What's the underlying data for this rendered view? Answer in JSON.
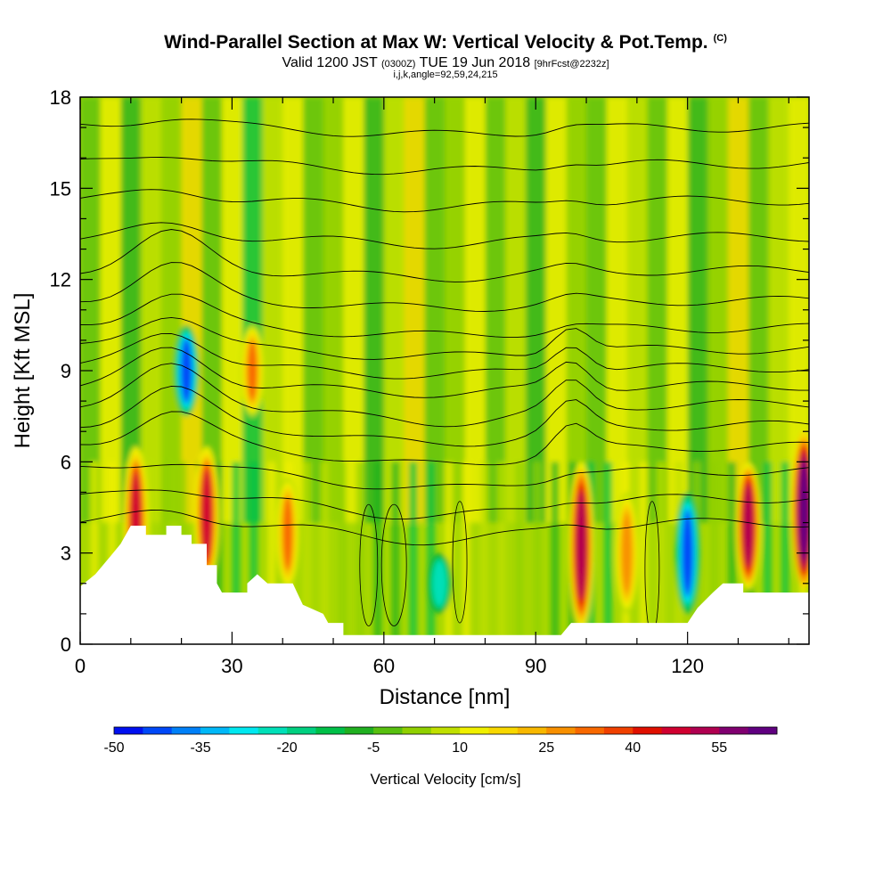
{
  "title": "Wind-Parallel Section at Max W: Vertical Velocity & Pot.Temp.",
  "copyright_mark": "(C)",
  "subtitle_valid": "Valid 1200 JST",
  "subtitle_utc": "(0300Z)",
  "subtitle_date": "TUE 19 Jun 2018",
  "subtitle_fcst": "[9hrFcst@2232z]",
  "subtitle_params": "i,j,k,angle=92,59,24,215",
  "chart_data": {
    "type": "heatmap",
    "xlabel": "Distance [nm]",
    "ylabel": "Height [Kft MSL]",
    "xlim": [
      0,
      144
    ],
    "ylim": [
      0,
      18
    ],
    "xticks": [
      0,
      30,
      60,
      90,
      120
    ],
    "yticks": [
      0,
      3,
      6,
      9,
      12,
      15,
      18
    ],
    "colorbar": {
      "title": "Vertical Velocity [cm/s]",
      "min": -50,
      "max": 65,
      "step": 5,
      "tick_values": [
        -50,
        -35,
        -20,
        -5,
        10,
        25,
        40,
        55
      ],
      "colors": [
        "#0010f0",
        "#0048f8",
        "#0080f8",
        "#00b8f8",
        "#00e8f0",
        "#00e0b8",
        "#00d080",
        "#00c048",
        "#20b020",
        "#58c010",
        "#90d000",
        "#c0e000",
        "#f0f000",
        "#f8d800",
        "#f8b800",
        "#f89000",
        "#f86800",
        "#f04000",
        "#e01000",
        "#d00030",
        "#b00050",
        "#800070",
        "#600080"
      ]
    },
    "features": {
      "terrain_profile_kft": [
        [
          0,
          1.9
        ],
        [
          3,
          2.3
        ],
        [
          6,
          2.9
        ],
        [
          8,
          3.3
        ],
        [
          9,
          3.6
        ],
        [
          10,
          3.9
        ],
        [
          13,
          3.9
        ],
        [
          13,
          3.6
        ],
        [
          17,
          3.6
        ],
        [
          17,
          3.9
        ],
        [
          20,
          3.9
        ],
        [
          20,
          3.6
        ],
        [
          22,
          3.6
        ],
        [
          22,
          3.3
        ],
        [
          25,
          3.3
        ],
        [
          25,
          2.6
        ],
        [
          27,
          2.6
        ],
        [
          27,
          2.0
        ],
        [
          28,
          1.7
        ],
        [
          33,
          1.7
        ],
        [
          33,
          2.0
        ],
        [
          35,
          2.3
        ],
        [
          37,
          2.0
        ],
        [
          42,
          2.0
        ],
        [
          44,
          1.3
        ],
        [
          48,
          1.0
        ],
        [
          49,
          0.7
        ],
        [
          52,
          0.7
        ],
        [
          52,
          0.3
        ],
        [
          58,
          0.3
        ],
        [
          63,
          0.3
        ],
        [
          95,
          0.3
        ],
        [
          97,
          0.7
        ],
        [
          120,
          0.7
        ],
        [
          122,
          1.2
        ],
        [
          125,
          1.7
        ],
        [
          127,
          2.0
        ],
        [
          131,
          2.0
        ],
        [
          131,
          1.7
        ],
        [
          144,
          1.7
        ]
      ],
      "updraft_cores": [
        {
          "x": 11,
          "zmin": 1.5,
          "zmax": 6.5,
          "w": 45
        },
        {
          "x": 25,
          "zmin": 2.0,
          "zmax": 6.5,
          "w": 45
        },
        {
          "x": 34,
          "zmin": 7.5,
          "zmax": 10.5,
          "w": 30
        },
        {
          "x": 41,
          "zmin": 1.8,
          "zmax": 5.5,
          "w": 30
        },
        {
          "x": 99,
          "zmin": 0.5,
          "zmax": 6.0,
          "w": 50
        },
        {
          "x": 108,
          "zmin": 1.0,
          "zmax": 5.0,
          "w": 25
        },
        {
          "x": 132,
          "zmin": 1.8,
          "zmax": 6.0,
          "w": 50
        },
        {
          "x": 143,
          "zmin": 1.8,
          "zmax": 7.0,
          "w": 65
        }
      ],
      "downdraft_cores": [
        {
          "x": 21,
          "zmin": 7.5,
          "zmax": 10.5,
          "w": -45
        },
        {
          "x": 120,
          "zmin": 1.0,
          "zmax": 5.0,
          "w": -45
        },
        {
          "x": 71,
          "zmin": 1.0,
          "zmax": 3.0,
          "w": -25
        }
      ]
    }
  }
}
